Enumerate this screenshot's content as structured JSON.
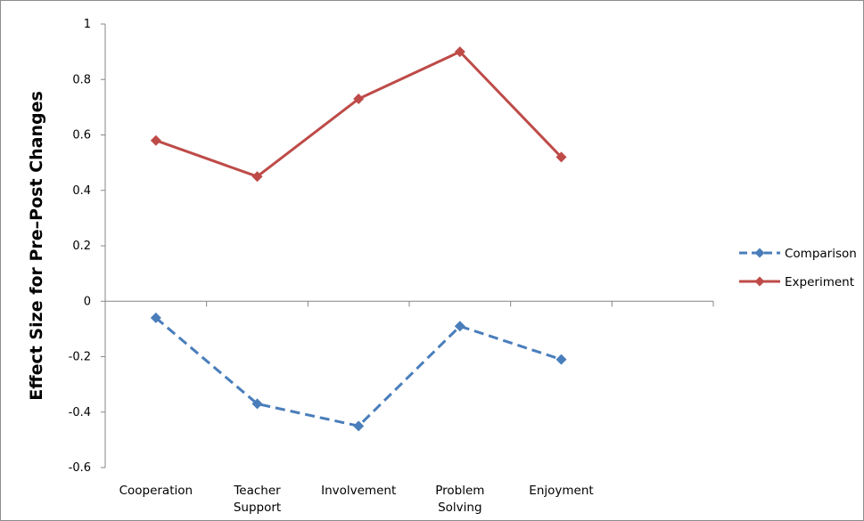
{
  "chart_data": {
    "type": "line",
    "title": "",
    "xlabel": "",
    "ylabel": "Effect Size for Pre–Post Changes",
    "categories": [
      [
        "Cooperation"
      ],
      [
        "Teacher",
        "Support"
      ],
      [
        "Involvement"
      ],
      [
        "Problem",
        "Solving"
      ],
      [
        "Enjoyment"
      ]
    ],
    "extra_category_slot": true,
    "ylim": [
      -0.6,
      1
    ],
    "yticks": [
      1,
      0.8,
      0.6,
      0.4,
      0.2,
      0,
      -0.2,
      -0.4,
      -0.6
    ],
    "ytick_labels": [
      "1",
      "0.8",
      "0.6",
      "0.4",
      "0.2",
      "0",
      "-0.2",
      "-0.4",
      "-0.6"
    ],
    "grid": false,
    "legend_position": "right",
    "series": [
      {
        "name": "Comparison",
        "values": [
          -0.06,
          -0.37,
          -0.45,
          -0.09,
          -0.21
        ],
        "color": "#4a7ebb",
        "dashed": true,
        "marker": "diamond"
      },
      {
        "name": "Experiment",
        "values": [
          0.58,
          0.45,
          0.73,
          0.9,
          0.52
        ],
        "color": "#be4b48",
        "dashed": false,
        "marker": "diamond"
      }
    ]
  }
}
